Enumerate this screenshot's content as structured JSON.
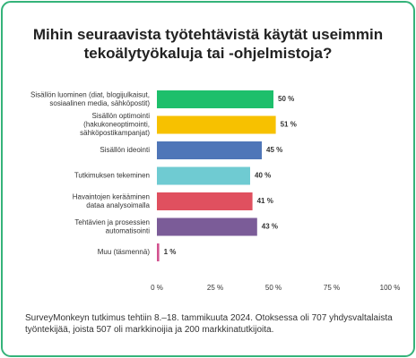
{
  "chart_data": {
    "type": "bar",
    "orientation": "horizontal",
    "title": "Mihin seuraavista työtehtävistä käytät useimmin tekoälytyökaluja tai -ohjelmistoja?",
    "categories": [
      "Sisällön luominen (diat, blogijulkaisut,\nsosiaalinen media, sähköpostit)",
      "Sisällön optimointi\n(hakukoneoptimointi,\nsähköpostikampanjat)",
      "Sisällön ideointi",
      "Tutkimuksen tekeminen",
      "Havaintojen kerääminen\ndataa analysoimalla",
      "Tehtävien ja prosessien\nautomatisointi",
      "Muu (täsmennä)"
    ],
    "values": [
      50,
      51,
      45,
      40,
      41,
      43,
      1
    ],
    "value_labels": [
      "50 %",
      "51 %",
      "45 %",
      "40 %",
      "41 %",
      "43 %",
      "1 %"
    ],
    "colors": [
      "#1dbf6b",
      "#f7c100",
      "#4f76b8",
      "#6fcbd2",
      "#e0505f",
      "#7b5c98",
      "#d2528f"
    ],
    "xlim": [
      0,
      100
    ],
    "xticks": [
      {
        "value": 0,
        "label": "0 %"
      },
      {
        "value": 25,
        "label": "25 %"
      },
      {
        "value": 50,
        "label": "50 %"
      },
      {
        "value": 75,
        "label": "75 %"
      },
      {
        "value": 100,
        "label": "100 %"
      }
    ],
    "footnote": "SurveyMonkeyn tutkimus tehtiin 8.–18. tammikuuta 2024. Otoksessa oli 707 yhdysvaltalaista työntekijää, joista 507 oli markkinoijia ja 200 markkinatutkijoita."
  }
}
